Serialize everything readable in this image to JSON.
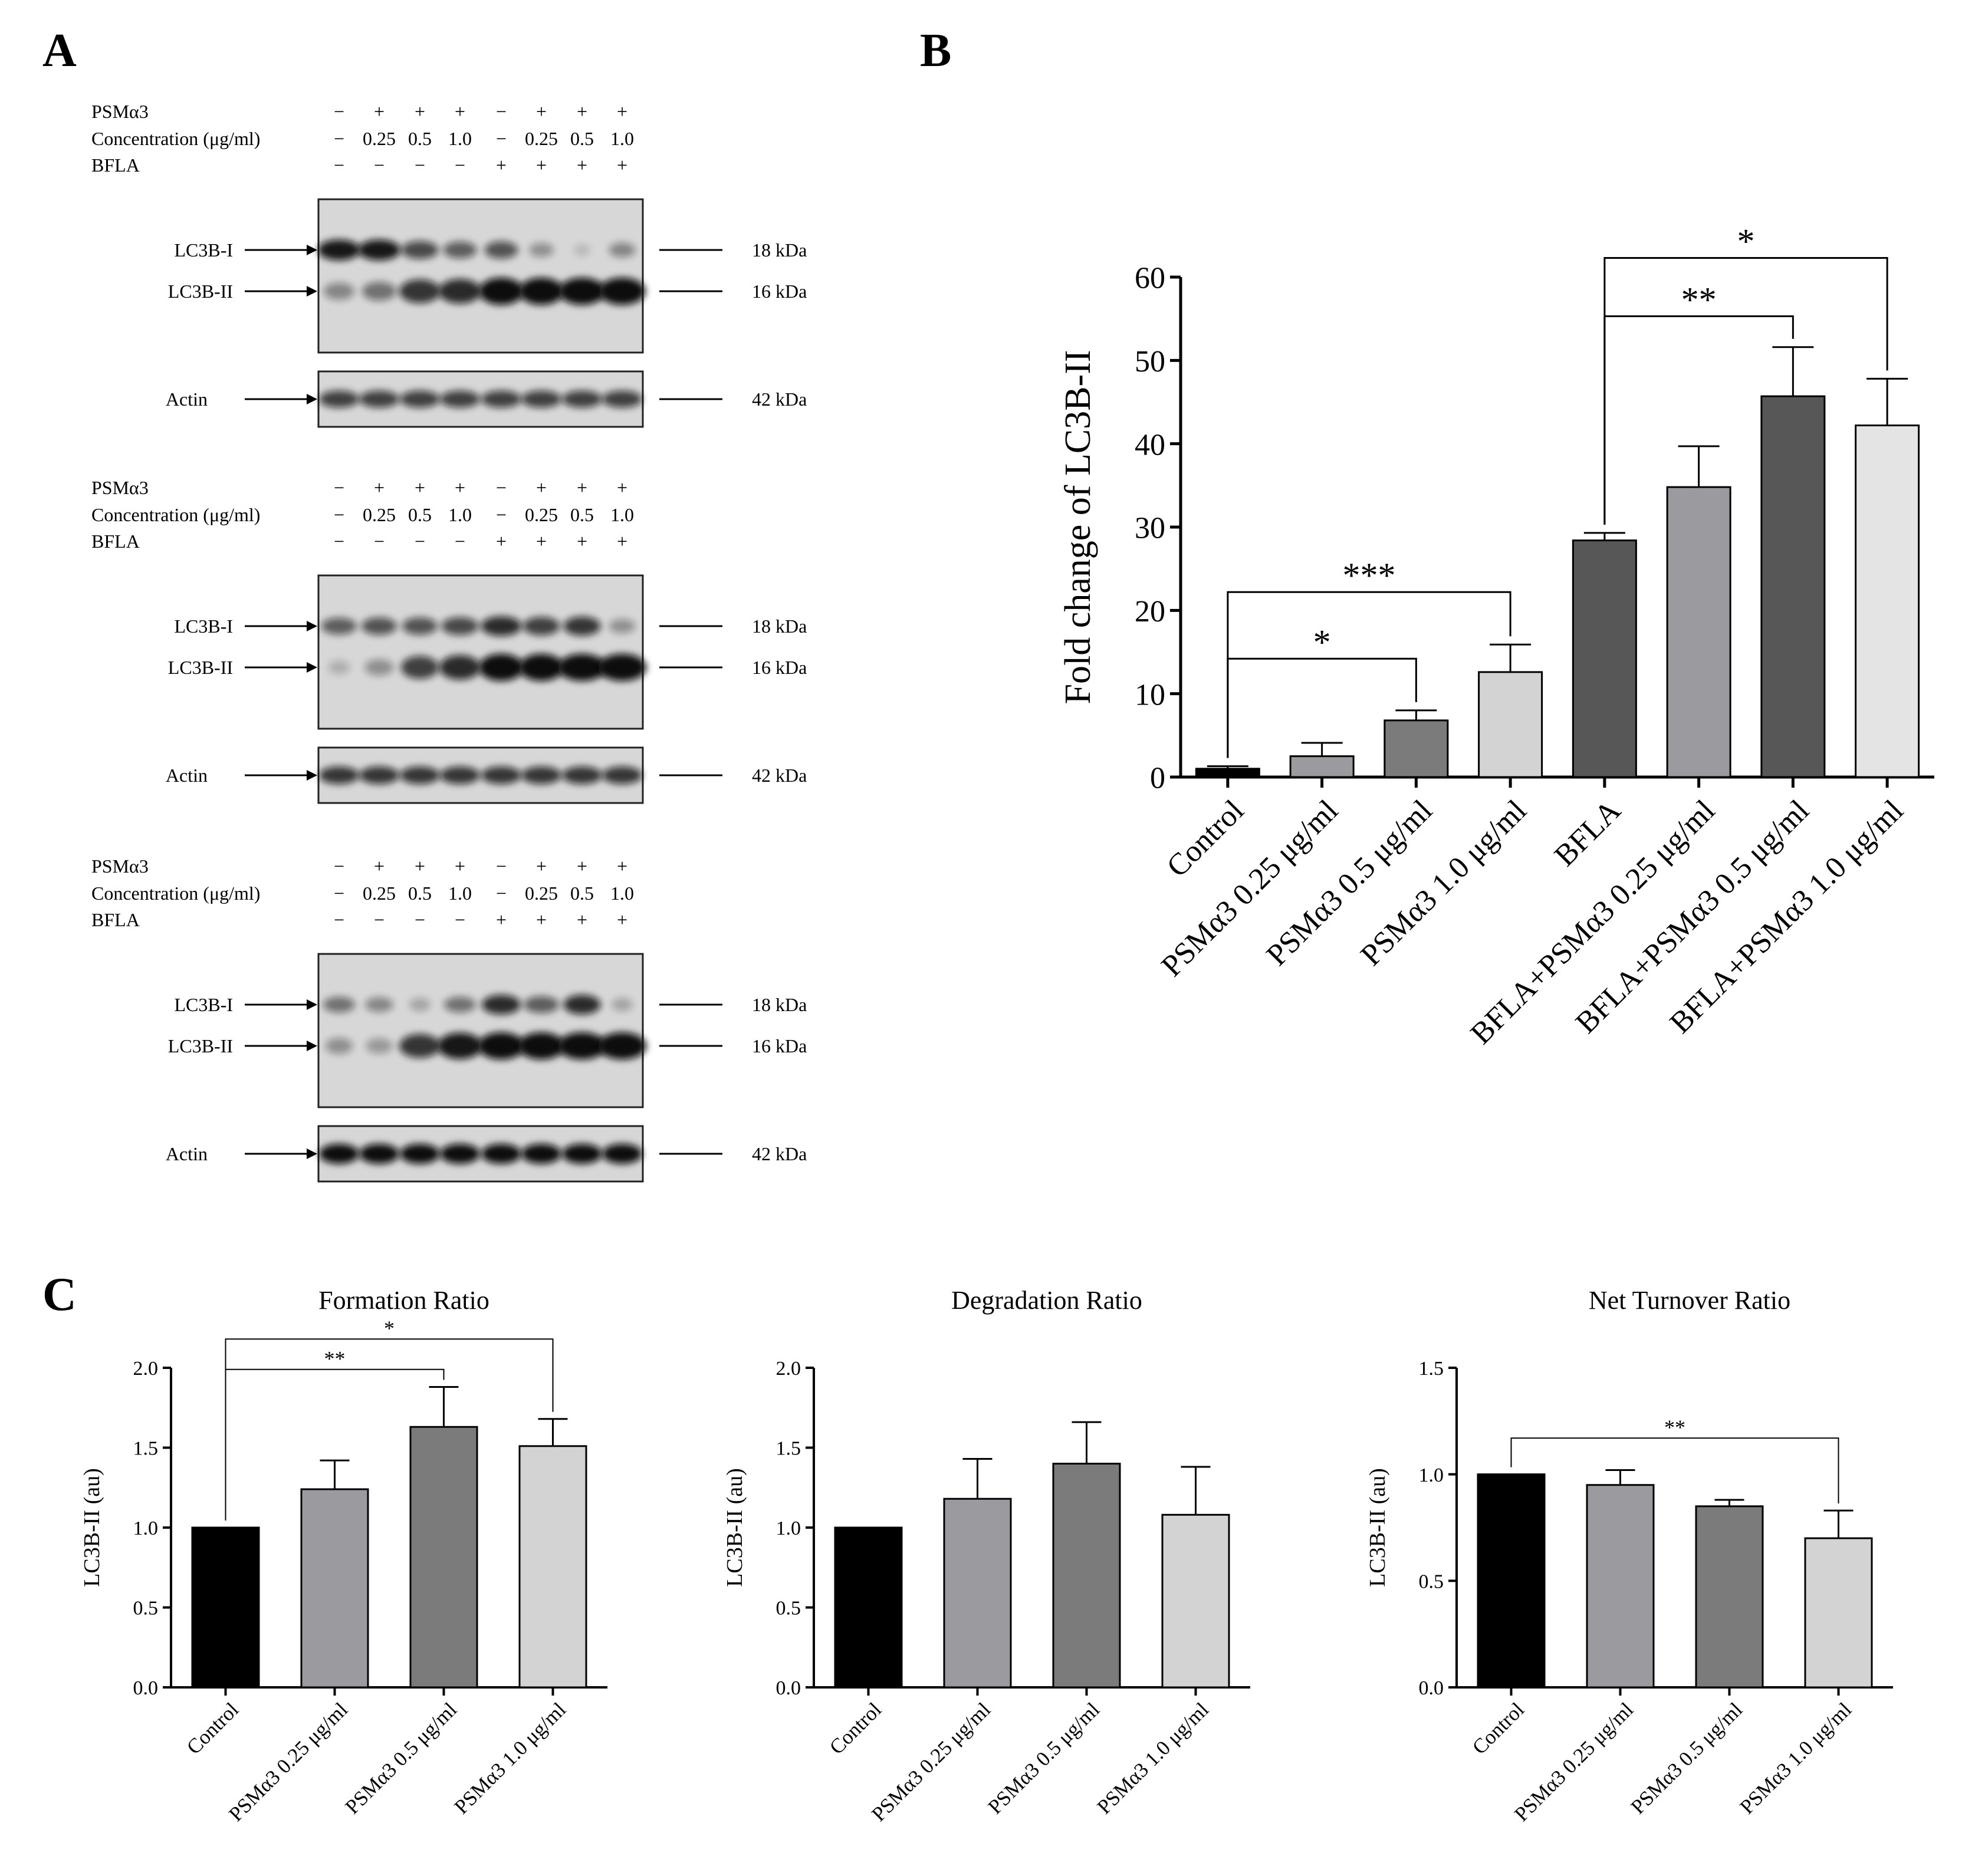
{
  "panel_labels": {
    "a": "A",
    "b": "B",
    "c": "C"
  },
  "colors": {
    "control": "#000000",
    "psm_025": "#9b9b9f",
    "psm_05": "#7b7b7b",
    "psm_10": "#d3d3d3",
    "bfla": "#575757",
    "bfla_025": "#9b9b9f",
    "bfla_05": "#575757",
    "bfla_10": "#e4e4e4"
  },
  "blots": {
    "row_labels": {
      "psm": "PSMα3",
      "conc": "Concentration  (μg/ml)",
      "bfla": "BFLA"
    },
    "psm_signs": [
      "−",
      "+",
      "+",
      "+",
      "−",
      "+",
      "+",
      "+"
    ],
    "conc_values": [
      "−",
      "0.25",
      "0.5",
      "1.0",
      "−",
      "0.25",
      "0.5",
      "1.0"
    ],
    "bfla_signs": [
      "−",
      "−",
      "−",
      "−",
      "+",
      "+",
      "+",
      "+"
    ],
    "band_labels": {
      "lc3b1": "LC3B-I",
      "lc3b2": "LC3B-II",
      "actin": "Actin"
    },
    "mw": {
      "lc3b1": "18 kDa",
      "lc3b2": "16 kDa",
      "actin": "42 kDa"
    }
  },
  "chart_data": [
    {
      "id": "B",
      "type": "bar",
      "title": "",
      "xlabel": "",
      "ylabel": "Fold change of LC3B-II",
      "ylim": [
        0,
        60
      ],
      "yticks": [
        "0",
        "10",
        "20",
        "30",
        "40",
        "50",
        "60"
      ],
      "categories": [
        "Control",
        "PSMα3 0.25 μg/ml",
        "PSMα3 0.5 μg/ml",
        "PSMα3 1.0 μg/ml",
        "BFLA",
        "BFLA+PSMα3 0.25 μg/ml",
        "BFLA+PSMα3 0.5 μg/ml",
        "BFLA+PSMα3 1.0 μg/ml"
      ],
      "values": [
        1.0,
        2.5,
        6.8,
        12.6,
        28.4,
        34.8,
        45.7,
        42.2
      ],
      "errors": [
        0.3,
        1.6,
        1.2,
        3.3,
        0.9,
        4.9,
        5.9,
        5.6
      ],
      "significance": [
        {
          "from": 0,
          "to": 2,
          "label": "*"
        },
        {
          "from": 0,
          "to": 3,
          "label": "***"
        },
        {
          "from": 4,
          "to": 6,
          "label": "**"
        },
        {
          "from": 4,
          "to": 7,
          "label": "*"
        }
      ]
    },
    {
      "id": "C1",
      "type": "bar",
      "title": "Formation Ratio",
      "xlabel": "",
      "ylabel": "LC3B-II (au)",
      "ylim": [
        0,
        2.0
      ],
      "yticks": [
        "0.0",
        "0.5",
        "1.0",
        "1.5",
        "2.0"
      ],
      "categories": [
        "Control",
        "PSMα3 0.25 μg/ml",
        "PSMα3 0.5 μg/ml",
        "PSMα3 1.0 μg/ml"
      ],
      "values": [
        1.0,
        1.24,
        1.63,
        1.51
      ],
      "errors": [
        0.0,
        0.18,
        0.25,
        0.17
      ],
      "significance": [
        {
          "from": 0,
          "to": 2,
          "label": "**"
        },
        {
          "from": 0,
          "to": 3,
          "label": "*"
        }
      ]
    },
    {
      "id": "C2",
      "type": "bar",
      "title": "Degradation Ratio",
      "xlabel": "",
      "ylabel": "LC3B-II (au)",
      "ylim": [
        0,
        2.0
      ],
      "yticks": [
        "0.0",
        "0.5",
        "1.0",
        "1.5",
        "2.0"
      ],
      "categories": [
        "Control",
        "PSMα3 0.25 μg/ml",
        "PSMα3 0.5 μg/ml",
        "PSMα3 1.0 μg/ml"
      ],
      "values": [
        1.0,
        1.18,
        1.4,
        1.08
      ],
      "errors": [
        0.0,
        0.25,
        0.26,
        0.3
      ],
      "significance": []
    },
    {
      "id": "C3",
      "type": "bar",
      "title": "Net Turnover Ratio",
      "xlabel": "",
      "ylabel": "LC3B-II (au)",
      "ylim": [
        0,
        1.5
      ],
      "yticks": [
        "0.0",
        "0.5",
        "1.0",
        "1.5"
      ],
      "categories": [
        "Control",
        "PSMα3 0.25 μg/ml",
        "PSMα3 0.5 μg/ml",
        "PSMα3 1.0 μg/ml"
      ],
      "values": [
        1.0,
        0.95,
        0.85,
        0.7
      ],
      "errors": [
        0.0,
        0.07,
        0.03,
        0.13
      ],
      "significance": [
        {
          "from": 0,
          "to": 3,
          "label": "**"
        }
      ]
    }
  ]
}
